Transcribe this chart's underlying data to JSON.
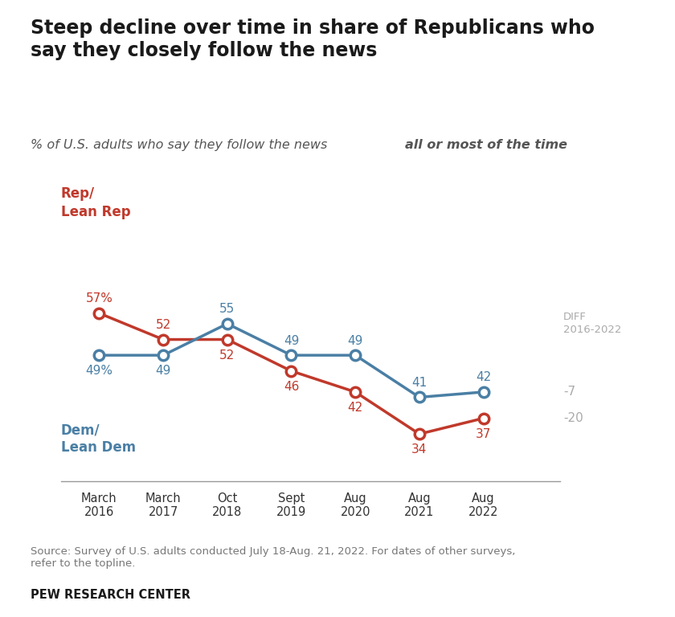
{
  "title": "Steep decline over time in share of Republicans who\nsay they closely follow the news",
  "subtitle_regular": "% of U.S. adults who say they follow the news ",
  "subtitle_bold": "all or most of the time",
  "x_labels": [
    "March\n2016",
    "March\n2017",
    "Oct\n2018",
    "Sept\n2019",
    "Aug\n2020",
    "Aug\n2021",
    "Aug\n2022"
  ],
  "rep_values": [
    57,
    52,
    52,
    46,
    42,
    34,
    37
  ],
  "dem_values": [
    49,
    49,
    55,
    49,
    49,
    41,
    42
  ],
  "rep_color": "#c0392b",
  "dem_color": "#4a7fa5",
  "rep_label": "Rep/\nLean Rep",
  "dem_label": "Dem/\nLean Dem",
  "diff_label": "DIFF\n2016-2022",
  "rep_diff": "-20",
  "dem_diff": "-7",
  "source_text": "Source: Survey of U.S. adults conducted July 18-Aug. 21, 2022. For dates of other surveys,\nrefer to the topline.",
  "footer_text": "PEW RESEARCH CENTER",
  "background_color": "#ffffff",
  "diff_color": "#aaaaaa",
  "label_offsets_rep_x": [
    0,
    0,
    0,
    0,
    0,
    0,
    0
  ],
  "label_offsets_rep_y": [
    13,
    13,
    -14,
    -14,
    -14,
    -14,
    -14
  ],
  "label_texts_rep": [
    "57%",
    "52",
    "52",
    "46",
    "42",
    "34",
    "37"
  ],
  "label_offsets_dem_x": [
    0,
    0,
    0,
    0,
    0,
    0,
    0
  ],
  "label_offsets_dem_y": [
    -14,
    -14,
    13,
    13,
    13,
    13,
    13
  ],
  "label_texts_dem": [
    "49%",
    "49",
    "55",
    "49",
    "49",
    "41",
    "42"
  ]
}
